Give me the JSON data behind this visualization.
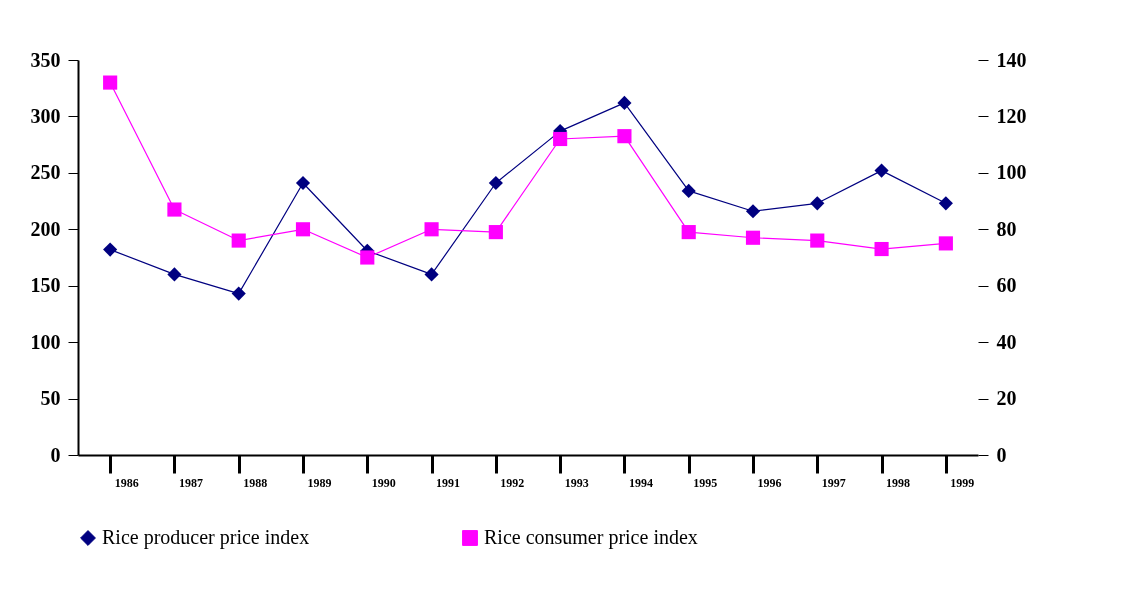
{
  "chart_data": {
    "type": "line",
    "categories": [
      "1986",
      "1987",
      "1988",
      "1989",
      "1990",
      "1991",
      "1992",
      "1993",
      "1994",
      "1995",
      "1996",
      "1997",
      "1998",
      "1999"
    ],
    "series": [
      {
        "name": "Rice producer price index",
        "color": "#000080",
        "marker": "diamond",
        "values": [
          182,
          160,
          143,
          241,
          181,
          160,
          241,
          287,
          312,
          234,
          216,
          223,
          252,
          223
        ]
      },
      {
        "name": "Rice consumer price index",
        "color": "#ff00ff",
        "marker": "square",
        "axis": "y2",
        "values": [
          132,
          87,
          76,
          80,
          70,
          80,
          79,
          112,
          113,
          79,
          77,
          76,
          73,
          75
        ]
      }
    ],
    "ylim": [
      0,
      350
    ],
    "yticks": [
      0,
      50,
      100,
      150,
      200,
      250,
      300,
      350
    ],
    "y2lim": [
      0,
      140
    ],
    "y2ticks": [
      0,
      20,
      40,
      60,
      80,
      100,
      120,
      140
    ],
    "legend": "bottom",
    "grid": false
  }
}
